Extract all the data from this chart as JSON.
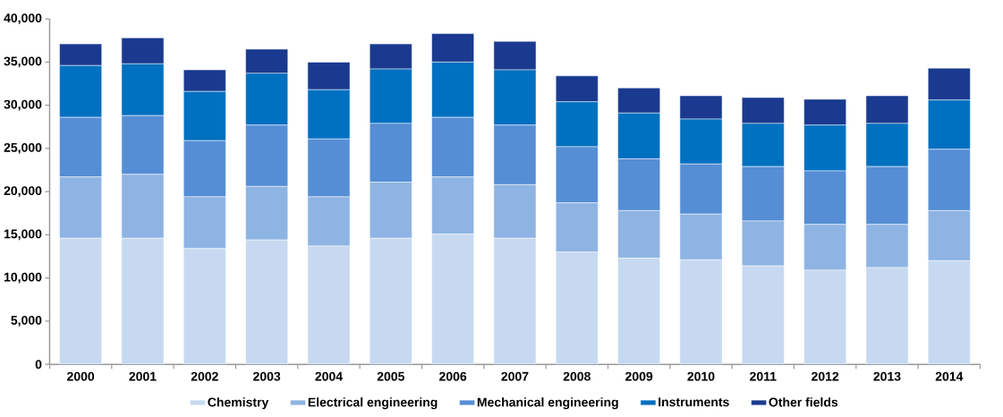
{
  "chart_data": {
    "type": "bar",
    "stacked": true,
    "categories": [
      "2000",
      "2001",
      "2002",
      "2003",
      "2004",
      "2005",
      "2006",
      "2007",
      "2008",
      "2009",
      "2010",
      "2011",
      "2012",
      "2013",
      "2014"
    ],
    "series": [
      {
        "name": "Chemistry",
        "color": "#c6d9f1",
        "values": [
          14600,
          14600,
          13400,
          14400,
          13700,
          14600,
          15100,
          14600,
          13000,
          12300,
          12100,
          11400,
          10900,
          11200,
          12000
        ]
      },
      {
        "name": "Electrical engineering",
        "color": "#8eb4e3",
        "values": [
          7100,
          7400,
          6000,
          6200,
          5700,
          6500,
          6600,
          6200,
          5700,
          5500,
          5300,
          5200,
          5300,
          5000,
          5800
        ]
      },
      {
        "name": "Mechanical engineering",
        "color": "#558ed5",
        "values": [
          6900,
          6800,
          6500,
          7100,
          6700,
          6800,
          6900,
          6900,
          6500,
          6000,
          5800,
          6300,
          6200,
          6700,
          7100
        ]
      },
      {
        "name": "Instruments",
        "color": "#0070c0",
        "values": [
          6000,
          6000,
          5700,
          6000,
          5700,
          6300,
          6400,
          6400,
          5200,
          5300,
          5200,
          5000,
          5300,
          5000,
          5700
        ]
      },
      {
        "name": "Other fields",
        "color": "#1a3a8f",
        "values": [
          2500,
          3000,
          2500,
          2800,
          3200,
          2900,
          3300,
          3300,
          3000,
          2900,
          2700,
          3000,
          3000,
          3200,
          3700
        ]
      }
    ],
    "ylim": [
      0,
      40000
    ],
    "yticks": [
      {
        "value": 0,
        "label": "0"
      },
      {
        "value": 5000,
        "label": "5,000"
      },
      {
        "value": 10000,
        "label": "10,000"
      },
      {
        "value": 15000,
        "label": "15,000"
      },
      {
        "value": 20000,
        "label": "20,000"
      },
      {
        "value": 25000,
        "label": "25,000"
      },
      {
        "value": 30000,
        "label": "30,000"
      },
      {
        "value": 35000,
        "label": "35,000"
      },
      {
        "value": 40000,
        "label": "40,000"
      }
    ],
    "legend": "bottom",
    "grid": false
  }
}
